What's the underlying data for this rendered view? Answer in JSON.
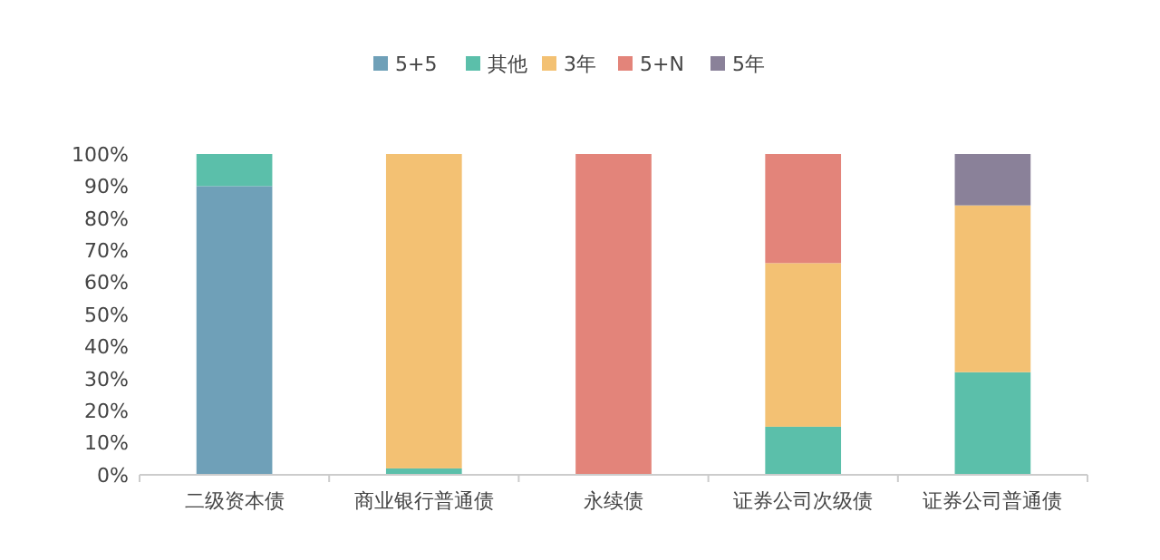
{
  "chart_data": {
    "type": "bar",
    "stacked": true,
    "categories": [
      "二级资本债",
      "商业银行普通债",
      "永续债",
      "证券公司次级债",
      "证券公司普通债"
    ],
    "series": [
      {
        "name": "5+5",
        "color": "#6fa0b8",
        "values": [
          90,
          0,
          0,
          0,
          0
        ]
      },
      {
        "name": "其他",
        "color": "#5bbfaa",
        "values": [
          10,
          2,
          0,
          15,
          32
        ]
      },
      {
        "name": "3年",
        "color": "#f3c173",
        "values": [
          0,
          98,
          0,
          51,
          52
        ]
      },
      {
        "name": "5+N",
        "color": "#e3847a",
        "values": [
          0,
          0,
          100,
          34,
          0
        ]
      },
      {
        "name": "5年",
        "color": "#8a8199",
        "values": [
          0,
          0,
          0,
          0,
          16
        ]
      }
    ],
    "ylim": [
      0,
      100
    ],
    "yticks": [
      {
        "value": 0,
        "label": "0%"
      },
      {
        "value": 10,
        "label": "10%"
      },
      {
        "value": 20,
        "label": "20%"
      },
      {
        "value": 30,
        "label": "30%"
      },
      {
        "value": 40,
        "label": "40%"
      },
      {
        "value": 50,
        "label": "50%"
      },
      {
        "value": 60,
        "label": "60%"
      },
      {
        "value": 70,
        "label": "70%"
      },
      {
        "value": 80,
        "label": "80%"
      },
      {
        "value": 90,
        "label": "90%"
      },
      {
        "value": 100,
        "label": "100%"
      }
    ],
    "legend": "top"
  }
}
